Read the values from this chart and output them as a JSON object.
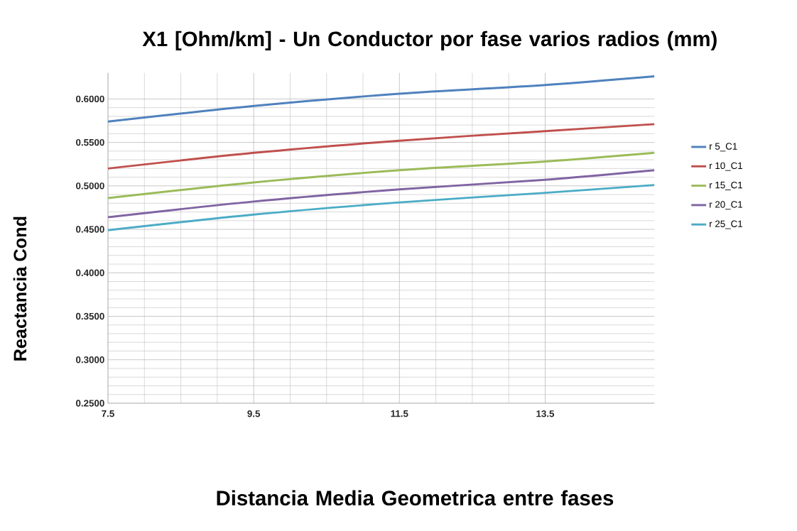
{
  "chart_data": {
    "type": "line",
    "title": "X1 [Ohm/km]  - Un Conductor por fase varios radios (mm)",
    "xlabel": "Distancia Media Geometrica entre fases",
    "ylabel": "Reactancia Cond",
    "x": [
      7.5,
      9.5,
      11.5,
      13.5,
      15
    ],
    "series": [
      {
        "name": "r 5_C1",
        "color": "#4f81bd",
        "values": [
          0.574,
          0.592,
          0.606,
          0.616,
          0.626
        ]
      },
      {
        "name": "r 10_C1",
        "color": "#c0504d",
        "values": [
          0.52,
          0.538,
          0.552,
          0.563,
          0.571
        ]
      },
      {
        "name": "r 15_C1",
        "color": "#9bbb59",
        "values": [
          0.486,
          0.504,
          0.518,
          0.528,
          0.538
        ]
      },
      {
        "name": "r 20_C1",
        "color": "#8064a2",
        "values": [
          0.464,
          0.482,
          0.496,
          0.507,
          0.518
        ]
      },
      {
        "name": "r 25_C1",
        "color": "#4bacc6",
        "values": [
          0.449,
          0.467,
          0.481,
          0.492,
          0.501
        ]
      }
    ],
    "xlim": [
      7.5,
      15
    ],
    "ylim": [
      0.25,
      0.63
    ],
    "xticks": [
      7.5,
      9.5,
      11.5,
      13.5
    ],
    "yticks": [
      {
        "value": 0.25,
        "label": "0.2500"
      },
      {
        "value": 0.3,
        "label": "0.3000"
      },
      {
        "value": 0.35,
        "label": "0.3500"
      },
      {
        "value": 0.4,
        "label": "0.4000"
      },
      {
        "value": 0.45,
        "label": "0.4500"
      },
      {
        "value": 0.5,
        "label": "0.5000"
      },
      {
        "value": 0.55,
        "label": "0.5500"
      },
      {
        "value": 0.6,
        "label": "0.6000"
      }
    ],
    "grid": true,
    "legend": "right",
    "marker": "none",
    "line_style": "solid"
  }
}
